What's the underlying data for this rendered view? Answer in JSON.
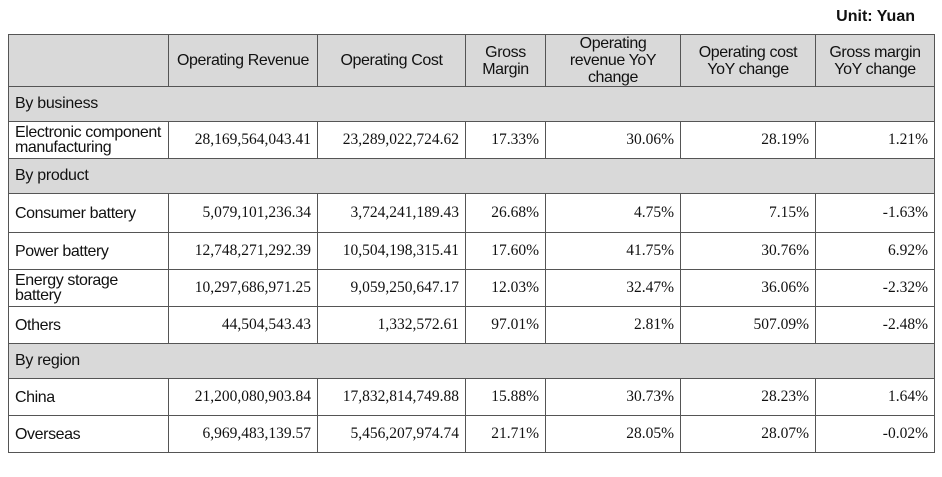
{
  "unit_label": "Unit: Yuan",
  "headers": [
    "",
    "Operating Revenue",
    "Operating Cost",
    "Gross Margin",
    "Operating revenue YoY change",
    "Operating cost YoY change",
    "Gross margin YoY change"
  ],
  "sections": [
    {
      "title": "By business",
      "rows": [
        {
          "label": "Electronic component manufacturing",
          "values": [
            "28,169,564,043.41",
            "23,289,022,724.62",
            "17.33%",
            "30.06%",
            "28.19%",
            "1.21%"
          ]
        }
      ]
    },
    {
      "title": "By product",
      "rows": [
        {
          "label": "Consumer battery",
          "values": [
            "5,079,101,236.34",
            "3,724,241,189.43",
            "26.68%",
            "4.75%",
            "7.15%",
            "-1.63%"
          ]
        },
        {
          "label": "Power battery",
          "values": [
            "12,748,271,292.39",
            "10,504,198,315.41",
            "17.60%",
            "41.75%",
            "30.76%",
            "6.92%"
          ]
        },
        {
          "label": "Energy storage battery",
          "values": [
            "10,297,686,971.25",
            "9,059,250,647.17",
            "12.03%",
            "32.47%",
            "36.06%",
            "-2.32%"
          ]
        },
        {
          "label": "Others",
          "values": [
            "44,504,543.43",
            "1,332,572.61",
            "97.01%",
            "2.81%",
            "507.09%",
            "-2.48%"
          ]
        }
      ]
    },
    {
      "title": "By region",
      "rows": [
        {
          "label": "China",
          "values": [
            "21,200,080,903.84",
            "17,832,814,749.88",
            "15.88%",
            "30.73%",
            "28.23%",
            "1.64%"
          ]
        },
        {
          "label": "Overseas",
          "values": [
            "6,969,483,139.57",
            "5,456,207,974.74",
            "21.71%",
            "28.05%",
            "28.07%",
            "-0.02%"
          ]
        }
      ]
    }
  ]
}
